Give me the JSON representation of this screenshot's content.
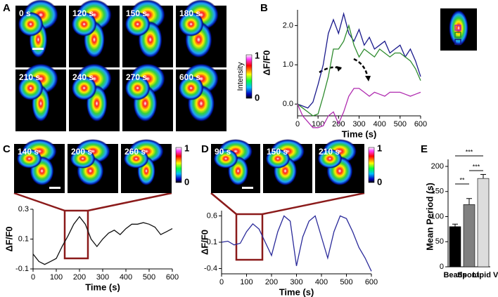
{
  "panels": {
    "A": {
      "label": "A",
      "frames": [
        "0 s",
        "120 s",
        "150 s",
        "180 s",
        "210 s",
        "240 s",
        "270 s",
        "600 s"
      ],
      "colorbar": {
        "title": "Intensity",
        "top": "1",
        "bottom": "0"
      }
    },
    "B": {
      "label": "B"
    },
    "C": {
      "label": "C",
      "frames": [
        "140 s",
        "200 s",
        "260 s"
      ],
      "colorbar": {
        "top": "1",
        "bottom": "0"
      }
    },
    "D": {
      "label": "D",
      "frames": [
        "90 s",
        "150 s",
        "210 s"
      ],
      "colorbar": {
        "top": "1",
        "bottom": "0"
      }
    },
    "E": {
      "label": "E"
    }
  },
  "chart_data": [
    {
      "type": "line",
      "xlabel": "Time (s)",
      "ylabel": "ΔF/F0",
      "x": [
        0,
        25,
        50,
        75,
        100,
        125,
        150,
        175,
        200,
        225,
        250,
        275,
        300,
        325,
        350,
        375,
        400,
        425,
        450,
        475,
        500,
        525,
        550,
        575,
        600
      ],
      "series": [
        {
          "color": "#1a1a8c",
          "values": [
            0,
            -0.05,
            -0.1,
            0.05,
            0.5,
            1.0,
            1.8,
            2.15,
            1.8,
            2.3,
            1.8,
            1.6,
            1.9,
            1.5,
            1.7,
            1.4,
            1.5,
            1.6,
            1.3,
            1.4,
            1.5,
            1.2,
            1.4,
            1.1,
            0.7
          ]
        },
        {
          "color": "#2e8b2e",
          "values": [
            0,
            -0.1,
            -0.2,
            -0.3,
            -0.25,
            0.2,
            0.7,
            1.4,
            1.4,
            1.6,
            2.0,
            1.5,
            1.2,
            1.4,
            1.3,
            1.2,
            1.4,
            1.3,
            1.2,
            1.3,
            1.3,
            1.2,
            1.1,
            0.9,
            0.6
          ]
        },
        {
          "color": "#b02cb0",
          "values": [
            0,
            -0.3,
            -0.45,
            -0.6,
            -0.6,
            -0.55,
            -0.3,
            -0.2,
            -0.5,
            -0.2,
            0.2,
            0.4,
            0.4,
            0.3,
            0.2,
            0.3,
            0.25,
            0.2,
            0.3,
            0.3,
            0.3,
            0.25,
            0.2,
            0.25,
            0.3
          ]
        }
      ],
      "xlim": [
        0,
        600
      ],
      "xticks": [
        0,
        100,
        200,
        300,
        400,
        500,
        600
      ],
      "ylim": [
        -0.3,
        2.4
      ],
      "yticks": [
        {
          "value": 0,
          "label": "0.0"
        },
        {
          "value": 1,
          "label": "1.0"
        },
        {
          "value": 2,
          "label": "2.0"
        }
      ]
    },
    {
      "type": "line",
      "xlabel": "Time (s)",
      "ylabel": "ΔF/F0",
      "color": "#111111",
      "x": [
        0,
        25,
        50,
        75,
        100,
        125,
        150,
        175,
        200,
        225,
        250,
        275,
        300,
        325,
        350,
        375,
        400,
        425,
        450,
        475,
        500,
        525,
        550,
        575,
        600
      ],
      "values": [
        0,
        -0.05,
        -0.07,
        -0.05,
        -0.03,
        0.05,
        0.12,
        0.2,
        0.25,
        0.2,
        0.1,
        0.05,
        0.1,
        0.14,
        0.16,
        0.13,
        0.17,
        0.2,
        0.2,
        0.21,
        0.2,
        0.18,
        0.13,
        0.15,
        0.17
      ],
      "xlim": [
        0,
        600
      ],
      "xticks": [
        0,
        100,
        200,
        300,
        400,
        500,
        600
      ],
      "ylim": [
        -0.1,
        0.3
      ],
      "yticks": [
        0.3,
        0.1,
        -0.1
      ]
    },
    {
      "type": "line",
      "xlabel": "Time (s)",
      "ylabel": "ΔF/F0",
      "color": "#2a2a9a",
      "x": [
        0,
        25,
        50,
        75,
        100,
        125,
        150,
        175,
        200,
        225,
        250,
        275,
        300,
        325,
        350,
        375,
        400,
        425,
        450,
        475,
        500,
        525,
        550,
        575,
        600
      ],
      "values": [
        0.1,
        0.12,
        0.05,
        0.08,
        0.3,
        0.45,
        0.35,
        0.1,
        -0.15,
        0.3,
        0.6,
        0.5,
        -0.35,
        0.2,
        0.5,
        0.6,
        0.2,
        -0.2,
        0.3,
        0.6,
        0.55,
        0.3,
        0.0,
        -0.2,
        -0.45
      ],
      "xlim": [
        0,
        600
      ],
      "xticks": [
        0,
        100,
        200,
        300,
        400,
        500,
        600
      ],
      "ylim": [
        -0.5,
        0.7
      ],
      "yticks": [
        0.6,
        0.1,
        -0.4
      ]
    },
    {
      "type": "bar",
      "ylabel": "Mean Period (s)",
      "categories": [
        "Beads",
        "Spont.",
        "Lipid V."
      ],
      "values": [
        80,
        124,
        176
      ],
      "errors": [
        5,
        12,
        8
      ],
      "colors": [
        "#000000",
        "#808080",
        "#dcdcdc"
      ],
      "ylim": [
        0,
        200
      ],
      "yticks": [
        0,
        50,
        100,
        150,
        200
      ],
      "annotations": [
        "**",
        "***",
        "***"
      ]
    }
  ]
}
